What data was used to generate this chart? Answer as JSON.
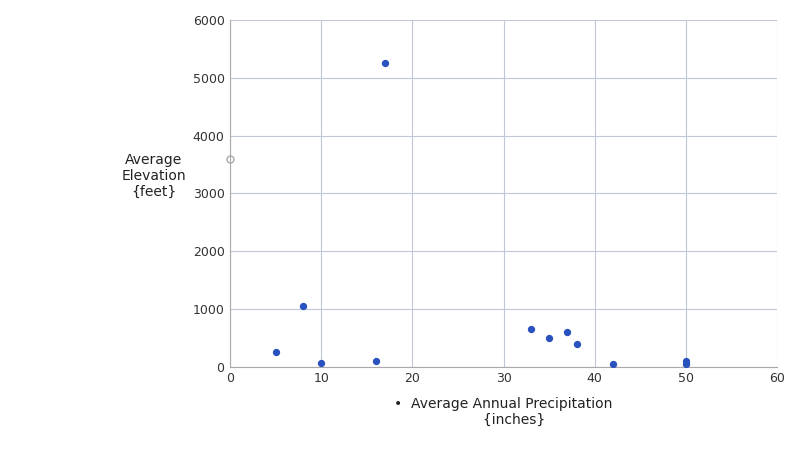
{
  "x": [
    5,
    8,
    10,
    16,
    17,
    33,
    35,
    37,
    38,
    42,
    50,
    50
  ],
  "y": [
    250,
    1050,
    70,
    100,
    5250,
    650,
    500,
    600,
    400,
    50,
    100,
    50
  ],
  "xlabel": "Average Annual Precipitation\n{inches}",
  "xlabel_bullet": "•  Average Annual Precipitation\n{inches}",
  "ylabel": "Average\nElevation\n{feet}",
  "xlim": [
    0,
    60
  ],
  "ylim": [
    0,
    6000
  ],
  "xticks": [
    0,
    10,
    20,
    30,
    40,
    50,
    60
  ],
  "yticks": [
    0,
    1000,
    2000,
    3000,
    4000,
    5000,
    6000
  ],
  "point_color": "#2a52be",
  "point_size": 18,
  "background_color": "#ffffff",
  "grid_color": "#c0c8d8",
  "spine_color": "#aaaaaa",
  "ylabel_marker_x": -0.3,
  "ylabel_marker_y": 3600
}
